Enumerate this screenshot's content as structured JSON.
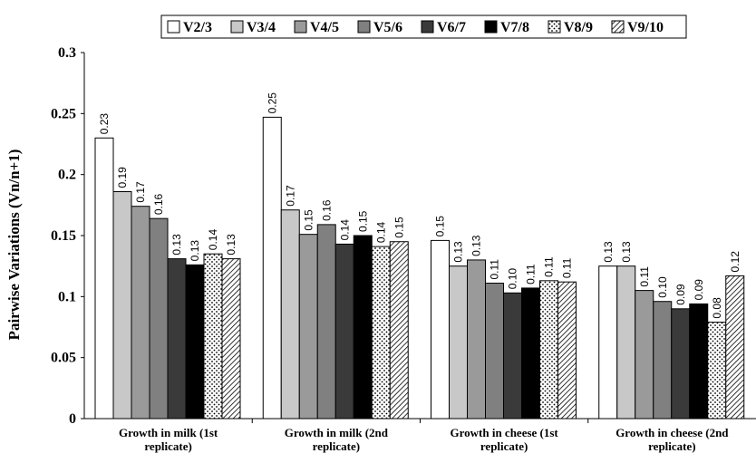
{
  "chart_data": {
    "type": "bar",
    "title": "",
    "xlabel": "",
    "ylabel": "Pairwise Variations (Vn/n+1)",
    "ylim": [
      0,
      0.3
    ],
    "yticks": [
      "0",
      "0.05",
      "0.1",
      "0.15",
      "0.2",
      "0.25",
      "0.3"
    ],
    "legend_position": "top",
    "categories": [
      [
        "Growth in milk (1st",
        "replicate)"
      ],
      [
        "Growth in milk (2nd",
        "replicate)"
      ],
      [
        "Growth in cheese (1st",
        "replicate)"
      ],
      [
        "Growth in cheese (2nd",
        "replicate)"
      ]
    ],
    "series": [
      {
        "name": "V2/3",
        "pattern": "white",
        "values": [
          0.23,
          0.247,
          0.146,
          0.125
        ],
        "labels": [
          "0.23",
          "0.25",
          "0.15",
          "0.13"
        ]
      },
      {
        "name": "V3/4",
        "pattern": "#c8c8c8",
        "values": [
          0.186,
          0.171,
          0.125,
          0.125
        ],
        "labels": [
          "0.19",
          "0.17",
          "0.13",
          "0.13"
        ]
      },
      {
        "name": "V4/5",
        "pattern": "#9a9a9a",
        "values": [
          0.174,
          0.151,
          0.13,
          0.105
        ],
        "labels": [
          "0.17",
          "0.15",
          "0.13",
          "0.11"
        ]
      },
      {
        "name": "V5/6",
        "pattern": "#808080",
        "values": [
          0.164,
          0.159,
          0.111,
          0.096
        ],
        "labels": [
          "0.16",
          "0.16",
          "0.11",
          "0.10"
        ]
      },
      {
        "name": "V6/7",
        "pattern": "#3a3a3a",
        "values": [
          0.131,
          0.143,
          0.103,
          0.09
        ],
        "labels": [
          "0.13",
          "0.14",
          "0.10",
          "0.09"
        ]
      },
      {
        "name": "V7/8",
        "pattern": "#000000",
        "values": [
          0.126,
          0.15,
          0.107,
          0.094
        ],
        "labels": [
          "0.13",
          "0.15",
          "0.11",
          "0.09"
        ]
      },
      {
        "name": "V8/9",
        "pattern": "dots",
        "values": [
          0.135,
          0.141,
          0.113,
          0.079
        ],
        "labels": [
          "0.14",
          "0.14",
          "0.11",
          "0.08"
        ]
      },
      {
        "name": "V9/10",
        "pattern": "hatch",
        "values": [
          0.131,
          0.145,
          0.112,
          0.117
        ],
        "labels": [
          "0.13",
          "0.15",
          "0.11",
          "0.12"
        ]
      }
    ]
  }
}
